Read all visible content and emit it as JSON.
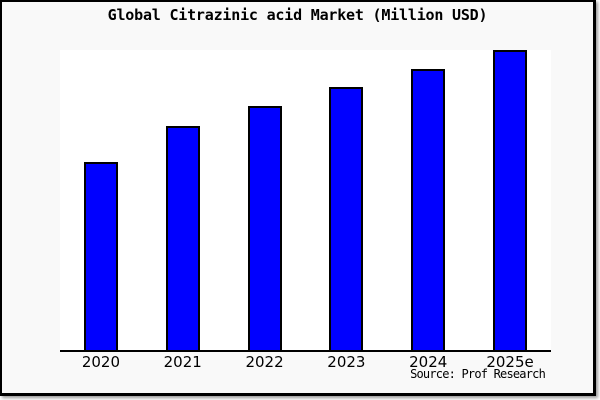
{
  "window": {
    "background_color": "#f9f9f9",
    "plot_background_color": "#ffffff",
    "frame_border_color": "#000000"
  },
  "chart_data": {
    "type": "bar",
    "title": "Global Citrazinic acid Market (Million USD)",
    "categories": [
      "2020",
      "2021",
      "2022",
      "2023",
      "2024",
      "2025e"
    ],
    "values": [
      62.7,
      74.8,
      81.5,
      87.6,
      93.6,
      100
    ],
    "value_note": "no y-axis shown; values estimated from bar heights relative to tallest bar = 100",
    "xlabel": "",
    "ylabel": "",
    "ylim": [
      0,
      100
    ],
    "grid": false,
    "legend": false,
    "bar_color": "#0000ff",
    "bar_edge_color": "#000000",
    "axis_line": "bottom-only"
  },
  "source": {
    "text": "Source: Prof Research"
  }
}
